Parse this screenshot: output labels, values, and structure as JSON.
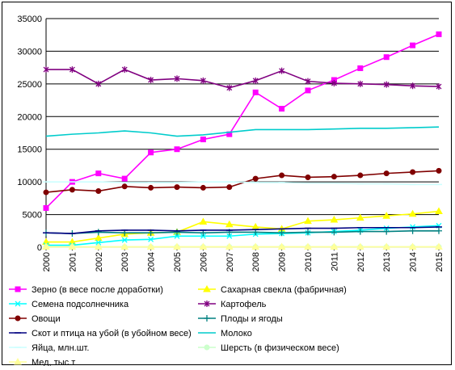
{
  "chart_data": {
    "type": "line",
    "title": "",
    "xlabel": "",
    "ylabel": "",
    "x": [
      "2000",
      "2001",
      "2002",
      "2003",
      "2004",
      "2005",
      "2006",
      "2007",
      "2008",
      "2009",
      "2010",
      "2011",
      "2012",
      "2013",
      "2014",
      "2015"
    ],
    "ylim": [
      0,
      35000
    ],
    "yticks": [
      0,
      5000,
      10000,
      15000,
      20000,
      25000,
      30000,
      35000
    ],
    "ytick_labels": [
      "0",
      "5000",
      "10000",
      "15000",
      "20000",
      "25000",
      "30000",
      "35000"
    ],
    "grid": "horizontal",
    "legend_position": "bottom",
    "series": [
      {
        "name": "Зерно (в весе после доработки)",
        "color": "#ff00ff",
        "marker": "square",
        "values": [
          6000,
          10000,
          11300,
          10500,
          14500,
          15000,
          16500,
          17300,
          23700,
          21200,
          24000,
          25600,
          27400,
          29100,
          30900,
          32600
        ]
      },
      {
        "name": "Сахарная свекла (фабричная)",
        "color": "#ffff00",
        "marker": "triangle",
        "values": [
          800,
          800,
          1400,
          2000,
          2200,
          2300,
          3900,
          3500,
          3100,
          2800,
          4000,
          4200,
          4500,
          4800,
          5100,
          5500
        ]
      },
      {
        "name": "Семена подсолнечника",
        "color": "#00ffff",
        "marker": "x",
        "values": [
          300,
          300,
          700,
          1100,
          1200,
          1700,
          1700,
          1700,
          2000,
          2100,
          2200,
          2400,
          2600,
          2900,
          3100,
          3300
        ]
      },
      {
        "name": "Картофель",
        "color": "#800080",
        "marker": "star",
        "values": [
          27200,
          27200,
          25000,
          27200,
          25600,
          25800,
          25500,
          24400,
          25500,
          27000,
          25400,
          25100,
          25000,
          24900,
          24700,
          24600
        ]
      },
      {
        "name": "Овощи",
        "color": "#800000",
        "marker": "circle",
        "values": [
          8400,
          8800,
          8600,
          9300,
          9100,
          9200,
          9100,
          9200,
          10500,
          11000,
          10700,
          10800,
          11000,
          11300,
          11500,
          11700
        ]
      },
      {
        "name": "Плоды и ягоды",
        "color": "#008080",
        "marker": "plus",
        "values": [
          2200,
          2100,
          2300,
          2200,
          2200,
          2300,
          2200,
          2300,
          2300,
          2200,
          2300,
          2300,
          2400,
          2400,
          2500,
          2500
        ]
      },
      {
        "name": "Скот и птица на убой (в убойном весе)",
        "color": "#000080",
        "marker": "dash",
        "values": [
          2200,
          2100,
          2500,
          2600,
          2600,
          2500,
          2600,
          2600,
          2700,
          2800,
          2900,
          2900,
          3000,
          3000,
          3000,
          3100
        ]
      },
      {
        "name": "Молоко",
        "color": "#00cccc",
        "marker": "none",
        "values": [
          17000,
          17300,
          17500,
          17800,
          17500,
          17000,
          17200,
          17600,
          18000,
          18000,
          18000,
          18100,
          18200,
          18200,
          18300,
          18400
        ]
      },
      {
        "name": "Яйца, млн.шт.",
        "color": "#ccffff",
        "marker": "dash",
        "values": [
          10000,
          10000,
          10000,
          9900,
          9900,
          9900,
          10000,
          10000,
          9900,
          9900,
          9800,
          9800,
          9700,
          9700,
          9600,
          9600
        ]
      },
      {
        "name": "Шерсть (в физическом весе)",
        "color": "#ccffcc",
        "marker": "circle",
        "values": [
          50,
          50,
          50,
          50,
          50,
          50,
          50,
          50,
          50,
          50,
          50,
          50,
          50,
          50,
          50,
          50
        ]
      },
      {
        "name": "Мед, тыс.т",
        "color": "#ffff99",
        "marker": "triangle",
        "values": [
          60,
          60,
          60,
          60,
          60,
          60,
          60,
          60,
          60,
          60,
          60,
          60,
          60,
          60,
          60,
          60
        ]
      }
    ]
  }
}
